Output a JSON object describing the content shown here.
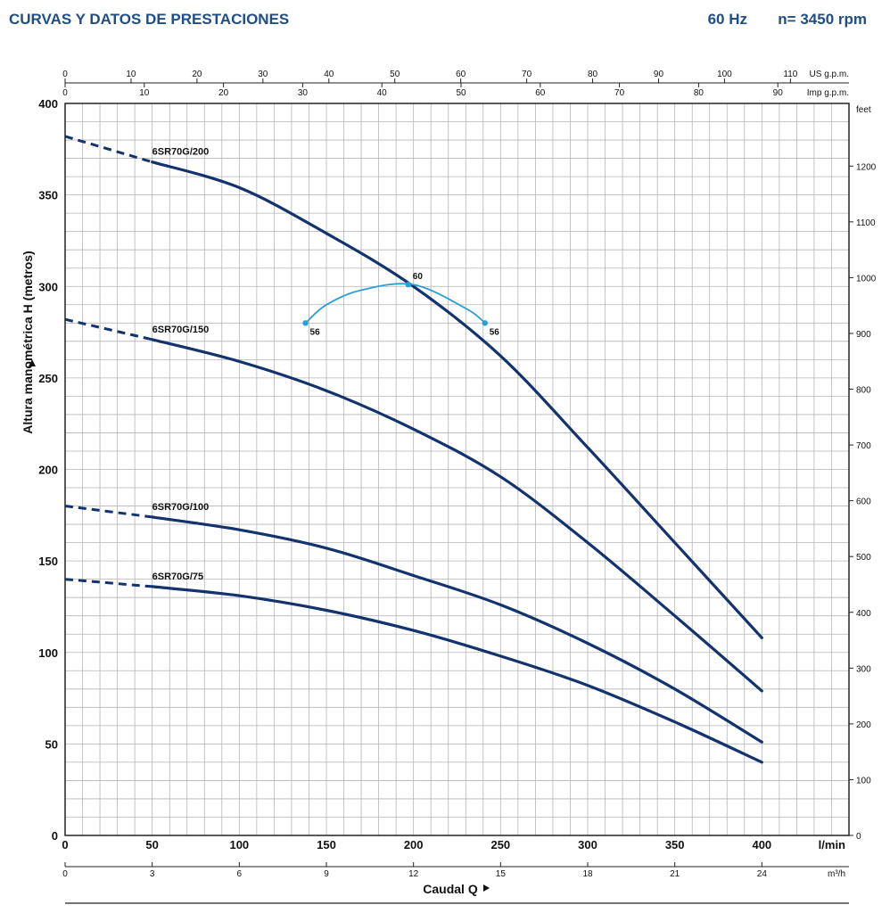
{
  "header": {
    "title": "CURVAS Y DATOS DE PRESTACIONES",
    "frequency": "60 Hz",
    "speed": "n= 3450 rpm"
  },
  "colors": {
    "curve": "#12336e",
    "efficiency": "#2a9fd6",
    "grid": "#b5b5b5",
    "frame": "#222222"
  },
  "chart_data": {
    "type": "line",
    "xlabel": "Caudal Q",
    "ylabel": "Altura manométrica H (metros)",
    "x_unit": "l/min",
    "xlim": [
      0,
      450
    ],
    "ylim": [
      0,
      400
    ],
    "x_ticks": [
      0,
      50,
      100,
      150,
      200,
      250,
      300,
      350,
      400
    ],
    "y_ticks": [
      0,
      50,
      100,
      150,
      200,
      250,
      300,
      350,
      400
    ],
    "grid": true,
    "secondary_axes": {
      "us_gpm": {
        "label": "US g.p.m.",
        "ticks": [
          0,
          10,
          20,
          30,
          40,
          50,
          60,
          70,
          80,
          90,
          100,
          110
        ],
        "per_unit": 0.264172
      },
      "imp_gpm": {
        "label": "Imp g.p.m.",
        "ticks": [
          0,
          10,
          20,
          30,
          40,
          50,
          60,
          70,
          80,
          90
        ],
        "per_unit": 0.219969
      },
      "m3h": {
        "label": "m³/h",
        "ticks": [
          0,
          3,
          6,
          9,
          12,
          15,
          18,
          21,
          24
        ],
        "per_unit": 0.06
      },
      "feet": {
        "label": "feet",
        "ticks": [
          0,
          100,
          200,
          300,
          400,
          500,
          600,
          700,
          800,
          900,
          1000,
          1100,
          1200
        ],
        "per_unit": 3.28084
      }
    },
    "series": [
      {
        "name": "6SR70G/200",
        "x": [
          0,
          50,
          100,
          150,
          200,
          250,
          300,
          350,
          400
        ],
        "y": [
          382,
          368,
          354,
          329,
          300,
          262,
          212,
          160,
          108
        ],
        "dashed_to_x": 50
      },
      {
        "name": "6SR70G/150",
        "x": [
          0,
          50,
          100,
          150,
          200,
          250,
          300,
          350,
          400
        ],
        "y": [
          282,
          271,
          259,
          243,
          222,
          196,
          160,
          120,
          79
        ],
        "dashed_to_x": 50
      },
      {
        "name": "6SR70G/100",
        "x": [
          0,
          50,
          100,
          150,
          200,
          250,
          300,
          350,
          400
        ],
        "y": [
          180,
          174,
          167,
          157,
          142,
          126,
          105,
          80,
          51
        ],
        "dashed_to_x": 50
      },
      {
        "name": "6SR70G/75",
        "x": [
          0,
          50,
          100,
          150,
          200,
          250,
          300,
          350,
          400
        ],
        "y": [
          140,
          136,
          131,
          123,
          112,
          98,
          82,
          62,
          40
        ],
        "dashed_to_x": 50
      }
    ],
    "efficiency_curve": {
      "x": [
        138,
        150,
        170,
        200,
        230,
        240
      ],
      "y": [
        280,
        290,
        298,
        301,
        288,
        281
      ],
      "points": [
        {
          "x": 138,
          "y": 280,
          "label": "56"
        },
        {
          "x": 197,
          "y": 301,
          "label": "60"
        },
        {
          "x": 241,
          "y": 280,
          "label": "56"
        }
      ]
    }
  }
}
